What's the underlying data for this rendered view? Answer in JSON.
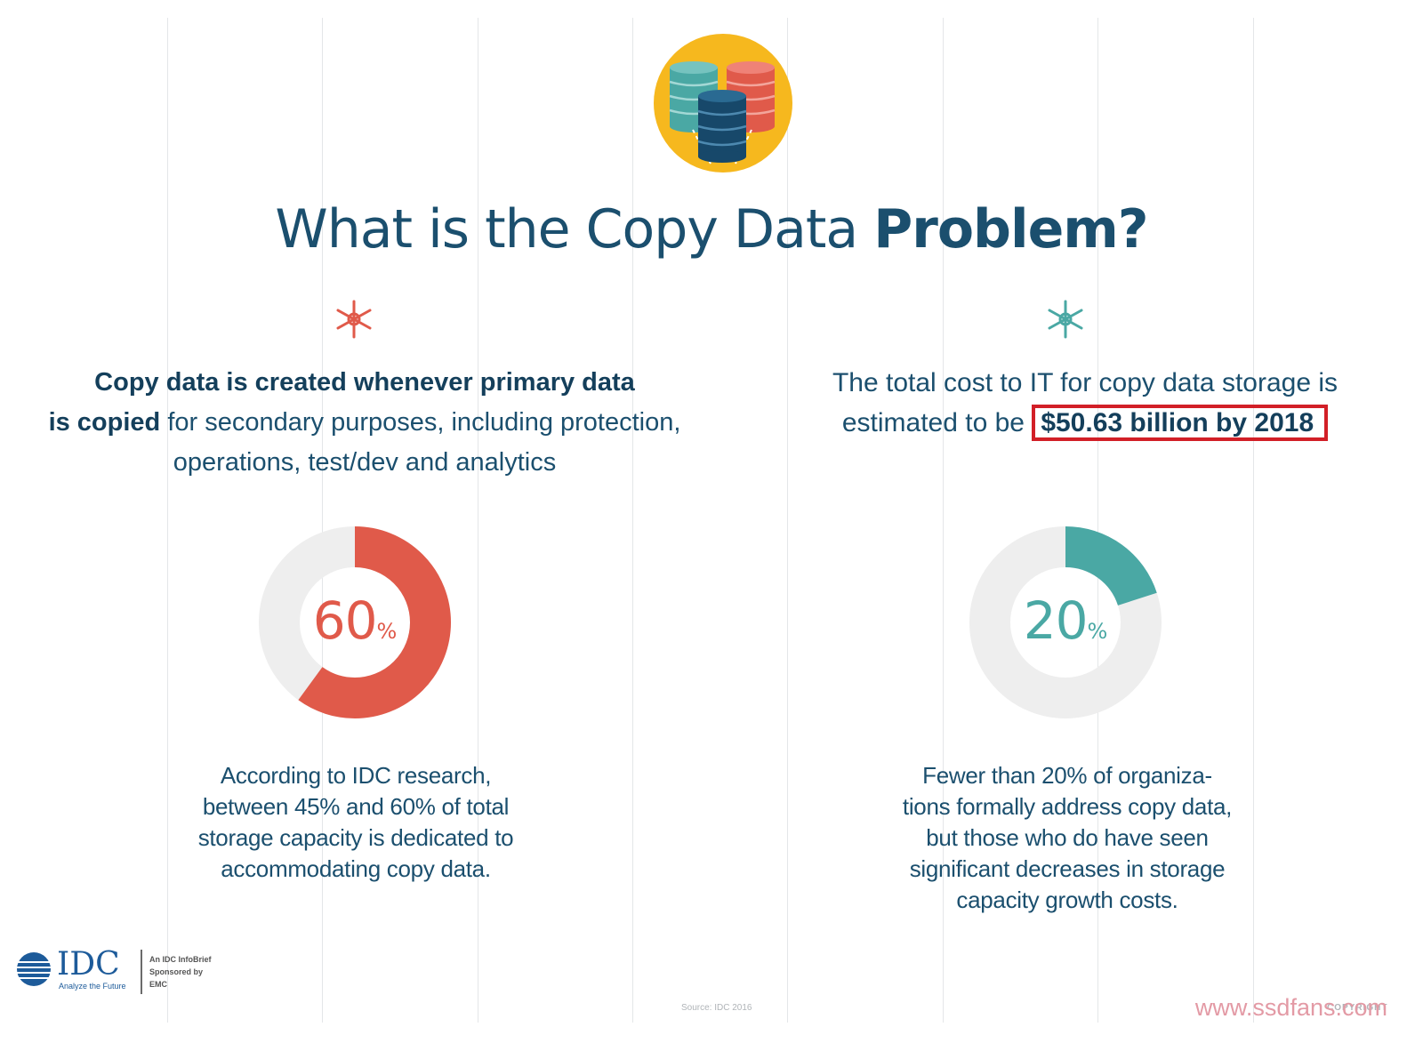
{
  "title": {
    "regular": "What is the Copy Data ",
    "bold": "Problem?"
  },
  "left_panel": {
    "description_bold_1": "Copy data is created whenever primary data",
    "description_bold_2": "is copied",
    "description_rest": " for secondary purposes, including protection, operations, test/dev and analytics",
    "donut": {
      "value": "60",
      "unit": "%",
      "fraction": 0.6,
      "color": "#e05a4a",
      "track_color": "#eeeeee"
    },
    "caption": [
      "According to IDC research,",
      "between 45% and 60% of total",
      "storage capacity is dedicated to",
      "accommodating copy data."
    ]
  },
  "right_panel": {
    "description_text": "The total cost to IT for copy data storage is estimated to be",
    "description_highlight": "$50.63 billion by 2018",
    "donut": {
      "value": "20",
      "unit": "%",
      "fraction": 0.2,
      "color": "#4aa8a4",
      "track_color": "#eeeeee"
    },
    "caption": [
      "Fewer than 20% of organiza-",
      "tions formally address copy data,",
      "but those who do have seen",
      "significant decreases in storage",
      "capacity growth costs."
    ]
  },
  "footer": {
    "logo_text": "IDC",
    "logo_tagline": "Analyze the Future",
    "info_lines": [
      "An IDC InfoBrief",
      "Sponsored by",
      "EMC"
    ],
    "source": "Source: IDC 2016",
    "copyright": "COPYRIGHT",
    "watermark": "www.ssdfans.com"
  },
  "colors": {
    "navy": "#1b4f6e",
    "coral": "#e05a4a",
    "teal": "#4aa8a4",
    "yellow": "#f6b81e",
    "highlight_border": "#d21f27"
  },
  "icons": {
    "hero": "database-stack-icon",
    "left_star": "asterisk-flower-icon",
    "right_star": "asterisk-flower-icon"
  }
}
